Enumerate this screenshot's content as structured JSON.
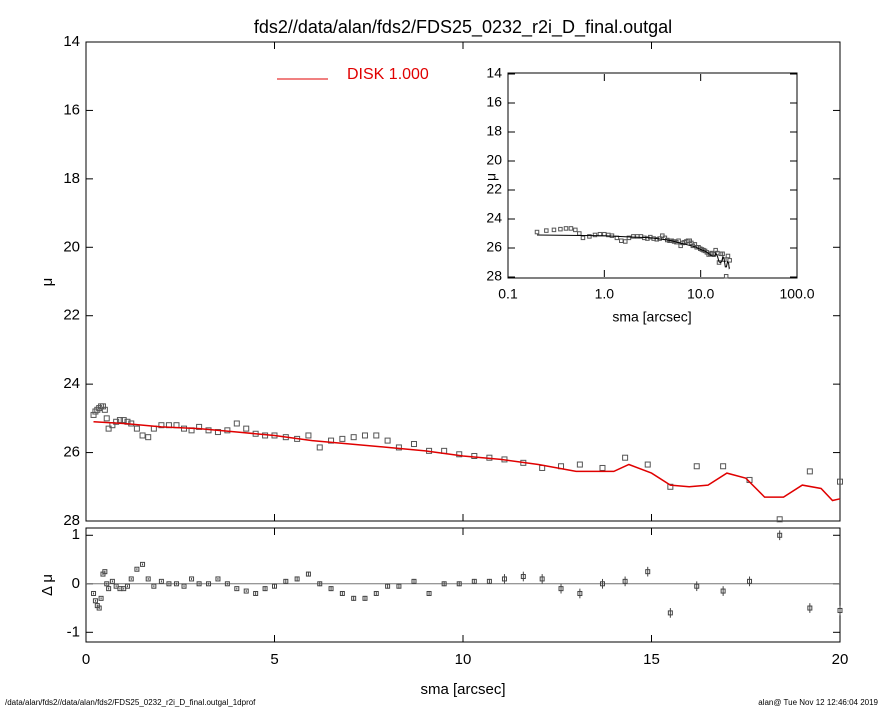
{
  "chart_data": [
    {
      "type": "scatter",
      "title": "fds2//data/alan/fds2/FDS25_0232_r2i_D_final.outgal",
      "ylabel": "μ",
      "xlim": [
        0,
        20
      ],
      "xticks": [
        0,
        5,
        10,
        15,
        20
      ],
      "ylim": [
        14,
        28
      ],
      "y_inverted": true,
      "yticks": [
        14,
        16,
        18,
        20,
        22,
        24,
        26,
        28
      ],
      "legend": "top",
      "series": [
        {
          "name": null,
          "color": "#555555",
          "marker": "square",
          "x": [
            0.2,
            0.25,
            0.3,
            0.35,
            0.4,
            0.45,
            0.5,
            0.55,
            0.6,
            0.7,
            0.8,
            0.9,
            1.0,
            1.1,
            1.2,
            1.35,
            1.5,
            1.65,
            1.8,
            2.0,
            2.2,
            2.4,
            2.6,
            2.8,
            3.0,
            3.25,
            3.5,
            3.75,
            4.0,
            4.25,
            4.5,
            4.75,
            5.0,
            5.3,
            5.6,
            5.9,
            6.2,
            6.5,
            6.8,
            7.1,
            7.4,
            7.7,
            8.0,
            8.3,
            8.7,
            9.1,
            9.5,
            9.9,
            10.3,
            10.7,
            11.1,
            11.6,
            12.1,
            12.6,
            13.1,
            13.7,
            14.3,
            14.9,
            15.5,
            16.2,
            16.9,
            17.6,
            18.4,
            19.2,
            20.0
          ],
          "values": [
            24.9,
            24.8,
            24.75,
            24.7,
            24.65,
            24.65,
            24.75,
            25.0,
            25.3,
            25.2,
            25.1,
            25.05,
            25.05,
            25.1,
            25.15,
            25.3,
            25.5,
            25.55,
            25.3,
            25.2,
            25.2,
            25.2,
            25.3,
            25.35,
            25.25,
            25.35,
            25.4,
            25.35,
            25.15,
            25.3,
            25.45,
            25.5,
            25.5,
            25.55,
            25.6,
            25.5,
            25.85,
            25.65,
            25.6,
            25.55,
            25.5,
            25.5,
            25.65,
            25.85,
            25.75,
            25.95,
            25.95,
            26.05,
            26.1,
            26.15,
            26.2,
            26.3,
            26.45,
            26.4,
            26.35,
            26.45,
            26.15,
            26.35,
            27.0,
            26.4,
            26.4,
            26.8,
            27.95,
            26.55,
            26.85
          ]
        },
        {
          "name": "DISK  1.000",
          "color": "#e00000",
          "marker": "line",
          "x": [
            0.2,
            1,
            2,
            3,
            4,
            5,
            6,
            7,
            8,
            9,
            10,
            11,
            12,
            13,
            14,
            14.4,
            15,
            15.5,
            16,
            16.5,
            17,
            17.5,
            18,
            18.5,
            19,
            19.5,
            19.8,
            20
          ],
          "values": [
            25.1,
            25.15,
            25.25,
            25.3,
            25.4,
            25.5,
            25.65,
            25.75,
            25.85,
            25.95,
            26.1,
            26.2,
            26.35,
            26.55,
            26.55,
            26.35,
            26.6,
            26.95,
            27.0,
            26.95,
            26.6,
            26.75,
            27.3,
            27.3,
            26.95,
            27.05,
            27.4,
            27.35
          ]
        }
      ]
    },
    {
      "type": "errorbar",
      "ylabel": "Δ μ",
      "xlabel": "sma [arcsec]",
      "xlim": [
        0,
        20
      ],
      "xticks": [
        0,
        5,
        10,
        15,
        20
      ],
      "ylim": [
        -1.2,
        1.15
      ],
      "yticks": [
        -1,
        0,
        1
      ],
      "color": "#444444",
      "x": [
        0.2,
        0.25,
        0.3,
        0.35,
        0.4,
        0.45,
        0.5,
        0.55,
        0.6,
        0.7,
        0.8,
        0.9,
        1.0,
        1.1,
        1.2,
        1.35,
        1.5,
        1.65,
        1.8,
        2.0,
        2.2,
        2.4,
        2.6,
        2.8,
        3.0,
        3.25,
        3.5,
        3.75,
        4.0,
        4.25,
        4.5,
        4.75,
        5.0,
        5.3,
        5.6,
        5.9,
        6.2,
        6.5,
        6.8,
        7.1,
        7.4,
        7.7,
        8.0,
        8.3,
        8.7,
        9.1,
        9.5,
        9.9,
        10.3,
        10.7,
        11.1,
        11.6,
        12.1,
        12.6,
        13.1,
        13.7,
        14.3,
        14.9,
        15.5,
        16.2,
        16.9,
        17.6,
        18.4,
        19.2,
        20.0
      ],
      "values": [
        -0.2,
        -0.35,
        -0.45,
        -0.5,
        -0.3,
        0.2,
        0.25,
        0.0,
        -0.1,
        0.05,
        -0.05,
        -0.1,
        -0.1,
        -0.05,
        0.1,
        0.3,
        0.4,
        0.1,
        -0.05,
        0.05,
        0.0,
        0.0,
        -0.05,
        0.1,
        0.0,
        0.0,
        0.1,
        0.0,
        -0.1,
        -0.15,
        -0.2,
        -0.1,
        -0.05,
        0.05,
        0.1,
        0.2,
        0.0,
        -0.1,
        -0.2,
        -0.3,
        -0.3,
        -0.2,
        -0.05,
        -0.05,
        0.05,
        -0.2,
        0.0,
        0.0,
        0.05,
        0.05,
        0.1,
        0.15,
        0.1,
        -0.1,
        -0.2,
        0.0,
        0.05,
        0.25,
        -0.6,
        -0.05,
        -0.15,
        0.05,
        1.0,
        -0.5,
        -0.55
      ],
      "errors": [
        0.02,
        0.02,
        0.02,
        0.02,
        0.02,
        0.02,
        0.02,
        0.02,
        0.02,
        0.02,
        0.02,
        0.02,
        0.02,
        0.02,
        0.02,
        0.02,
        0.02,
        0.02,
        0.02,
        0.02,
        0.02,
        0.02,
        0.02,
        0.02,
        0.02,
        0.02,
        0.02,
        0.02,
        0.02,
        0.02,
        0.05,
        0.05,
        0.05,
        0.05,
        0.05,
        0.05,
        0.05,
        0.05,
        0.05,
        0.05,
        0.05,
        0.05,
        0.05,
        0.05,
        0.05,
        0.05,
        0.05,
        0.05,
        0.05,
        0.05,
        0.1,
        0.1,
        0.1,
        0.1,
        0.1,
        0.1,
        0.1,
        0.1,
        0.1,
        0.1,
        0.1,
        0.1,
        0.1,
        0.1,
        0.1
      ]
    },
    {
      "type": "inset",
      "ylabel": "μ",
      "xlabel": "sma [arcsec]",
      "xlog": true,
      "xlim": [
        0.1,
        100
      ],
      "xticks": [
        0.1,
        {
          "value": 1,
          "label": "1.0"
        },
        {
          "value": 10,
          "label": "10.0"
        },
        {
          "value": 100,
          "label": "100.0"
        }
      ],
      "ylim": [
        14,
        28
      ],
      "y_inverted": true,
      "yticks": [
        14,
        16,
        18,
        20,
        22,
        24,
        26,
        28
      ],
      "line_color": "#000000"
    }
  ],
  "footer": {
    "left": "/data/alan/fds2//data/alan/fds2/FDS25_0232_r2i_D_final.outgal_1dprof",
    "right": "alan@  Tue Nov 12 12:46:04 2019"
  }
}
